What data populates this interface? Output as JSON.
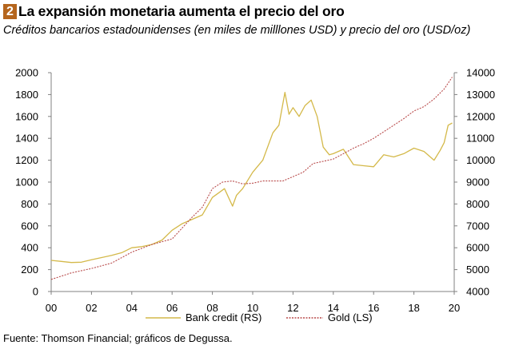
{
  "header": {
    "badge": "2",
    "title": "La expansión monetaria aumenta el precio del oro",
    "subtitle": "Créditos bancarios estadounidenses (en miles de milllones USD) y precio del oro (USD/oz)"
  },
  "footer": {
    "source": "Fuente: Thomson Financial; gráficos de Degussa."
  },
  "chart_data": {
    "type": "line",
    "x_ticks": [
      "00",
      "02",
      "04",
      "06",
      "08",
      "10",
      "12",
      "14",
      "16",
      "18",
      "20"
    ],
    "x_range": [
      2000,
      2020
    ],
    "y_left": {
      "range": [
        0,
        2000
      ],
      "ticks": [
        "0",
        "200",
        "400",
        "600",
        "800",
        "1000",
        "1200",
        "1400",
        "1600",
        "1800",
        "2000"
      ]
    },
    "y_right": {
      "range": [
        4000,
        14000
      ],
      "ticks": [
        "4000",
        "5000",
        "6000",
        "7000",
        "8000",
        "9000",
        "10000",
        "11000",
        "12000",
        "13000",
        "14000"
      ]
    },
    "grid": false,
    "legend_position": "bottom",
    "series": [
      {
        "name": "Bank credit (RS)",
        "axis": "left",
        "color": "#d4b94a",
        "style": "solid",
        "x": [
          2000.0,
          2000.5,
          2001.0,
          2001.5,
          2002.0,
          2002.5,
          2003.0,
          2003.5,
          2004.0,
          2004.5,
          2005.0,
          2005.5,
          2006.0,
          2006.5,
          2007.0,
          2007.5,
          2008.0,
          2008.3,
          2008.6,
          2009.0,
          2009.2,
          2009.5,
          2010.0,
          2010.5,
          2011.0,
          2011.3,
          2011.6,
          2011.8,
          2012.0,
          2012.3,
          2012.6,
          2012.9,
          2013.2,
          2013.5,
          2013.8,
          2014.0,
          2014.5,
          2015.0,
          2015.5,
          2016.0,
          2016.5,
          2017.0,
          2017.5,
          2018.0,
          2018.5,
          2019.0,
          2019.3,
          2019.5,
          2019.7,
          2019.9
        ],
        "values": [
          285,
          275,
          265,
          268,
          290,
          310,
          330,
          355,
          400,
          410,
          430,
          470,
          560,
          620,
          660,
          700,
          860,
          900,
          940,
          780,
          880,
          940,
          1090,
          1200,
          1450,
          1520,
          1820,
          1620,
          1680,
          1600,
          1700,
          1750,
          1600,
          1320,
          1250,
          1260,
          1300,
          1160,
          1150,
          1140,
          1250,
          1230,
          1260,
          1310,
          1280,
          1200,
          1290,
          1360,
          1520,
          1540
        ]
      },
      {
        "name": "Gold (LS)",
        "axis": "right",
        "color": "#b84a4a",
        "style": "dashed",
        "x": [
          2000.0,
          2001.0,
          2002.0,
          2003.0,
          2004.0,
          2005.0,
          2006.0,
          2006.5,
          2007.0,
          2007.5,
          2008.0,
          2008.5,
          2009.0,
          2009.5,
          2010.0,
          2010.5,
          2011.0,
          2011.5,
          2012.0,
          2012.5,
          2013.0,
          2013.5,
          2014.0,
          2014.5,
          2015.0,
          2015.5,
          2016.0,
          2016.5,
          2017.0,
          2017.5,
          2018.0,
          2018.5,
          2019.0,
          2019.5,
          2019.9
        ],
        "values": [
          4550,
          4850,
          5050,
          5300,
          5800,
          6150,
          6400,
          6900,
          7400,
          7850,
          8700,
          9000,
          9050,
          8920,
          8950,
          9050,
          9050,
          9050,
          9250,
          9450,
          9850,
          9950,
          10050,
          10300,
          10550,
          10750,
          11000,
          11300,
          11600,
          11900,
          12250,
          12450,
          12800,
          13250,
          13800
        ]
      }
    ]
  }
}
